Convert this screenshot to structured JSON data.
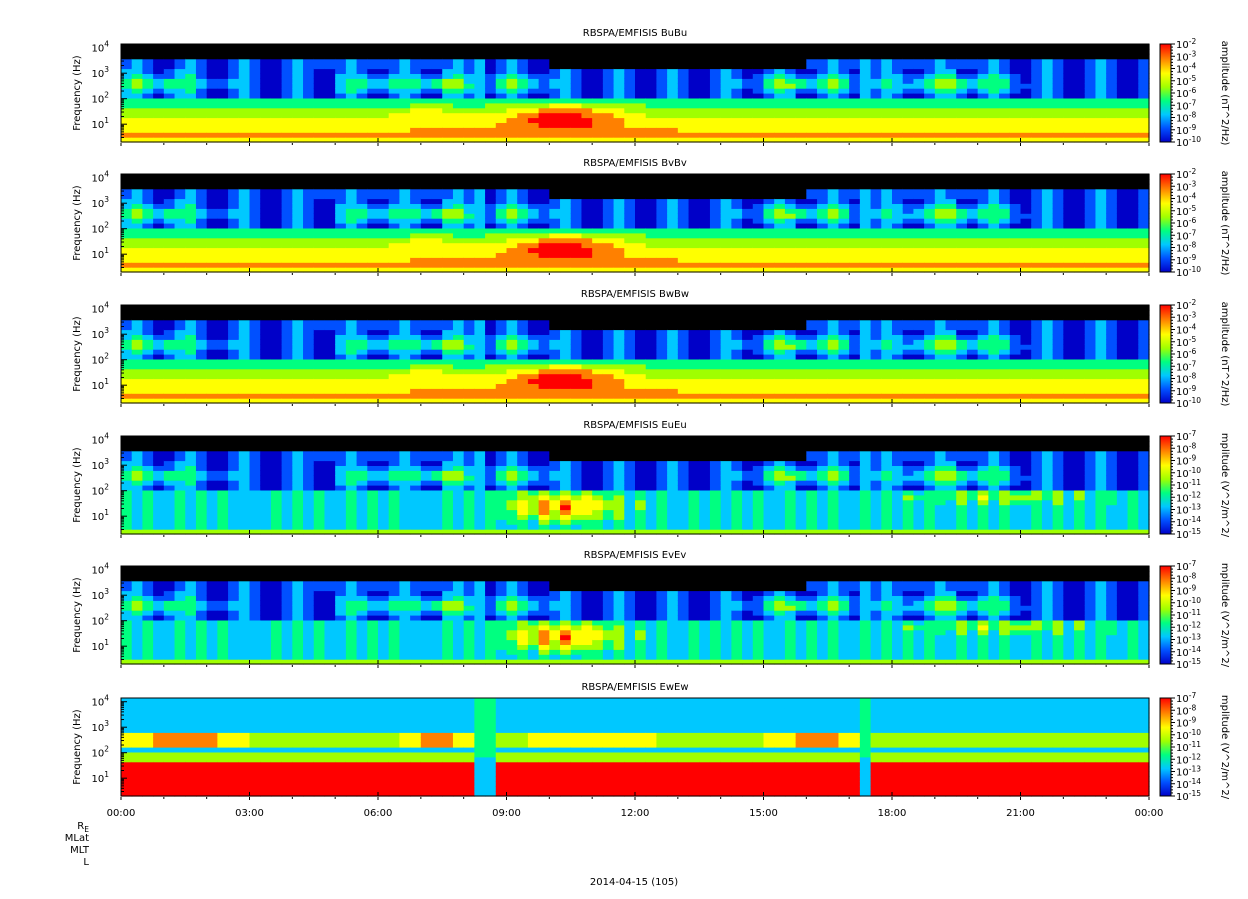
{
  "figure": {
    "date_label": "2014-04-15 (105)",
    "ephemeris_labels": [
      {
        "main": "R",
        "sub": "E"
      },
      {
        "main": "MLat",
        "sub": ""
      },
      {
        "main": "MLT",
        "sub": ""
      },
      {
        "main": "L",
        "sub": ""
      }
    ]
  },
  "colors": {
    "background_empty": "#000000",
    "colormap": [
      "#0000c8",
      "#0050ff",
      "#00c8ff",
      "#00ff80",
      "#a0ff00",
      "#ffff00",
      "#ff8000",
      "#ff0000"
    ]
  },
  "chart_data": {
    "type": "heatmap",
    "x_axis": {
      "label": "",
      "ticks": [
        "00:00",
        "03:00",
        "06:00",
        "09:00",
        "12:00",
        "15:00",
        "18:00",
        "21:00",
        "00:00"
      ]
    },
    "y_axis": {
      "label": "Frequency (Hz)",
      "scale": "log",
      "range": [
        2,
        14000
      ],
      "ticks": [
        {
          "base": "10",
          "exp": "1"
        },
        {
          "base": "10",
          "exp": "2"
        },
        {
          "base": "10",
          "exp": "3"
        },
        {
          "base": "10",
          "exp": "4"
        }
      ]
    },
    "panels": [
      {
        "title": "RBSPA/EMFISIS  BuBu",
        "colorbar_label": "amplitude (nT^2/Hz)",
        "colorbar_ticks": [
          "-2",
          "-3",
          "-4",
          "-5",
          "-6",
          "-7",
          "-8",
          "-9",
          "-10"
        ]
      },
      {
        "title": "RBSPA/EMFISIS  BvBv",
        "colorbar_label": "amplitude (nT^2/Hz)",
        "colorbar_ticks": [
          "-2",
          "-3",
          "-4",
          "-5",
          "-6",
          "-7",
          "-8",
          "-9",
          "-10"
        ]
      },
      {
        "title": "RBSPA/EMFISIS  BwBw",
        "colorbar_label": "amplitude (nT^2/Hz)",
        "colorbar_ticks": [
          "-2",
          "-3",
          "-4",
          "-5",
          "-6",
          "-7",
          "-8",
          "-9",
          "-10"
        ]
      },
      {
        "title": "RBSPA/EMFISIS  EuEu",
        "colorbar_label": "mplitude (V^2/m^2/",
        "colorbar_ticks": [
          "-7",
          "-8",
          "-9",
          "-10",
          "-11",
          "-12",
          "-13",
          "-14",
          "-15"
        ]
      },
      {
        "title": "RBSPA/EMFISIS  EvEv",
        "colorbar_label": "mplitude (V^2/m^2/",
        "colorbar_ticks": [
          "-7",
          "-8",
          "-9",
          "-10",
          "-11",
          "-12",
          "-13",
          "-14",
          "-15"
        ]
      },
      {
        "title": "RBSPA/EMFISIS  EwEw",
        "colorbar_label": "mplitude (V^2/m^2/",
        "colorbar_ticks": [
          "-7",
          "-8",
          "-9",
          "-10",
          "-11",
          "-12",
          "-13",
          "-14",
          "-15"
        ]
      }
    ]
  }
}
